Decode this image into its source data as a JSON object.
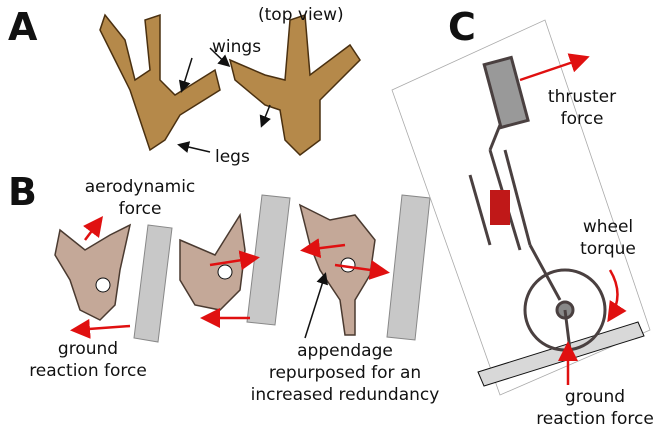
{
  "panel_a": {
    "label": "A",
    "view": "(top view)",
    "wings": "wings",
    "legs": "legs"
  },
  "panel_b": {
    "label": "B",
    "aero": [
      "aerodynamic",
      "force"
    ],
    "ground": [
      "ground",
      "reaction force"
    ],
    "appendage": [
      "appendage",
      "repurposed for an",
      "increased redundancy"
    ]
  },
  "panel_c": {
    "label": "C",
    "thruster": [
      "thruster",
      "force"
    ],
    "wheel": [
      "wheel",
      "torque"
    ],
    "ground": [
      "ground",
      "reaction force"
    ]
  }
}
